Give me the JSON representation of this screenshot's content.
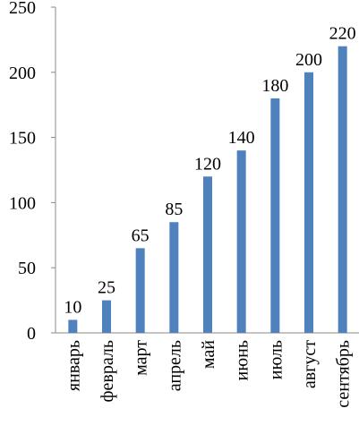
{
  "chart_data": {
    "type": "bar",
    "categories": [
      "январь",
      "февраль",
      "март",
      "апрель",
      "май",
      "июнь",
      "июль",
      "август",
      "сентябрь"
    ],
    "values": [
      10,
      25,
      65,
      85,
      120,
      140,
      180,
      200,
      220
    ],
    "color": "#4f81bd",
    "ylim": [
      0,
      250
    ],
    "yticks": [
      0,
      50,
      100,
      150,
      200,
      250
    ],
    "grid": false
  }
}
